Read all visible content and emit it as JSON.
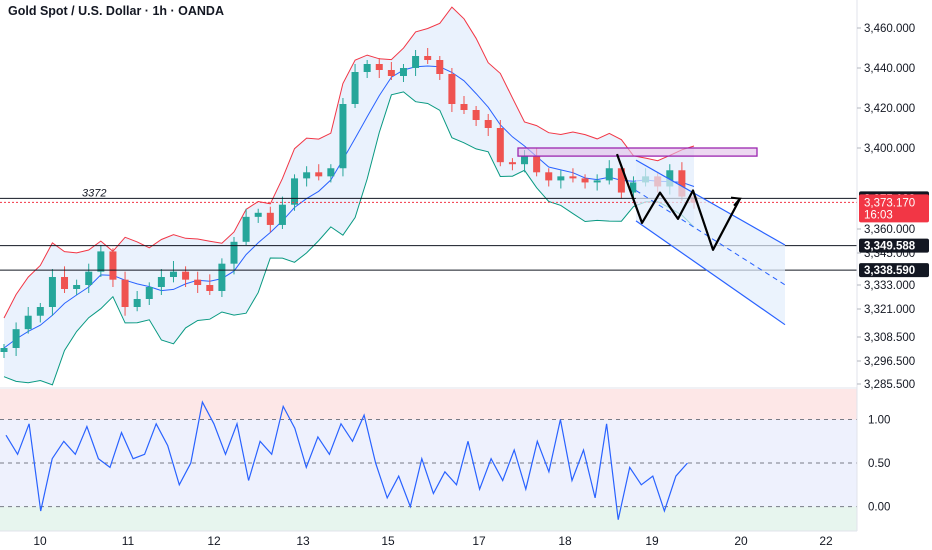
{
  "header": {
    "title": "Gold Spot / U.S. Dollar · 1h · OANDA"
  },
  "colors": {
    "up": "#26a69a",
    "down": "#ef5350",
    "basis": "#2962ff",
    "upper_band": "#f23645",
    "lower_band": "#089981",
    "band_fill": "#e3eefc",
    "rsi_line": "#2962ff",
    "price_badge": "#f23645",
    "level_badge": "#131722",
    "resistance_box": "#e1bee7"
  },
  "chart_data": [
    {
      "type": "candlestick",
      "title": "Gold Spot / U.S. Dollar · 1h · OANDA",
      "yticks": [
        "3,460.000",
        "3,440.000",
        "3,420.000",
        "3,400.000",
        "3,360.000",
        "3,345.000",
        "3,333.000",
        "3,321.000",
        "3,308.500",
        "3,296.500",
        "3,285.500"
      ],
      "ytick_values": [
        3460,
        3440,
        3420,
        3400,
        3360,
        3345,
        3333,
        3321,
        3308.5,
        3296.5,
        3285.5
      ],
      "xticks": [
        "10",
        "11",
        "12",
        "13",
        "15",
        "17",
        "18",
        "19",
        "20",
        "22"
      ],
      "ylim": [
        3285.5,
        3466
      ],
      "price_line": {
        "value": "3,373.170",
        "countdown": "16:03"
      },
      "levels": [
        {
          "value": 3375.122,
          "label": "3,375.122"
        },
        {
          "value": 3349.588,
          "label": "3,349.588"
        },
        {
          "value": 3338.59,
          "label": "3,338.590"
        }
      ],
      "level_note": "3372",
      "resistance_zone": [
        3396,
        3400
      ],
      "projection_path": [
        3397,
        3363,
        3378,
        3365,
        3379,
        3347,
        3375,
        3338,
        3357
      ],
      "channel": {
        "top_start": 3394,
        "top_end": 3350,
        "bottom_start": 3364,
        "bottom_end": 3314
      },
      "close_path": [
        3303,
        3312,
        3318,
        3322,
        3336,
        3331,
        3333,
        3338,
        3346,
        3335,
        3322,
        3326,
        3332,
        3336,
        3338,
        3335,
        3333,
        3330,
        3341,
        3352,
        3366,
        3368,
        3362,
        3372,
        3385,
        3388,
        3386,
        3390,
        3422,
        3438,
        3442,
        3439,
        3436,
        3440,
        3446,
        3444,
        3437,
        3422,
        3419,
        3414,
        3410,
        3393,
        3392,
        3396,
        3388,
        3384,
        3386,
        3385,
        3383,
        3384,
        3390,
        3378,
        3383,
        3386,
        3381,
        3389,
        3376,
        3373
      ]
    },
    {
      "type": "line",
      "name": "oscillator",
      "yticks": [
        "1.00",
        "0.50",
        "0.00"
      ],
      "ytick_values": [
        1,
        0.5,
        0
      ],
      "ylim": [
        -0.28,
        1.35
      ],
      "x_end": 0.73,
      "values": [
        0.82,
        0.6,
        0.95,
        -0.05,
        0.55,
        0.75,
        0.6,
        0.92,
        0.55,
        0.45,
        0.85,
        0.55,
        0.6,
        0.95,
        0.7,
        0.25,
        0.5,
        1.2,
        0.95,
        0.6,
        0.95,
        0.3,
        0.75,
        0.6,
        1.15,
        0.9,
        0.45,
        0.8,
        0.6,
        0.95,
        0.75,
        1.05,
        0.5,
        0.1,
        0.35,
        0.0,
        0.55,
        0.15,
        0.4,
        0.25,
        0.75,
        0.2,
        0.55,
        0.3,
        0.65,
        0.2,
        0.75,
        0.4,
        1.0,
        0.3,
        0.65,
        0.1,
        0.95,
        -0.15,
        0.45,
        0.25,
        0.35,
        -0.05,
        0.35,
        0.5
      ]
    }
  ]
}
